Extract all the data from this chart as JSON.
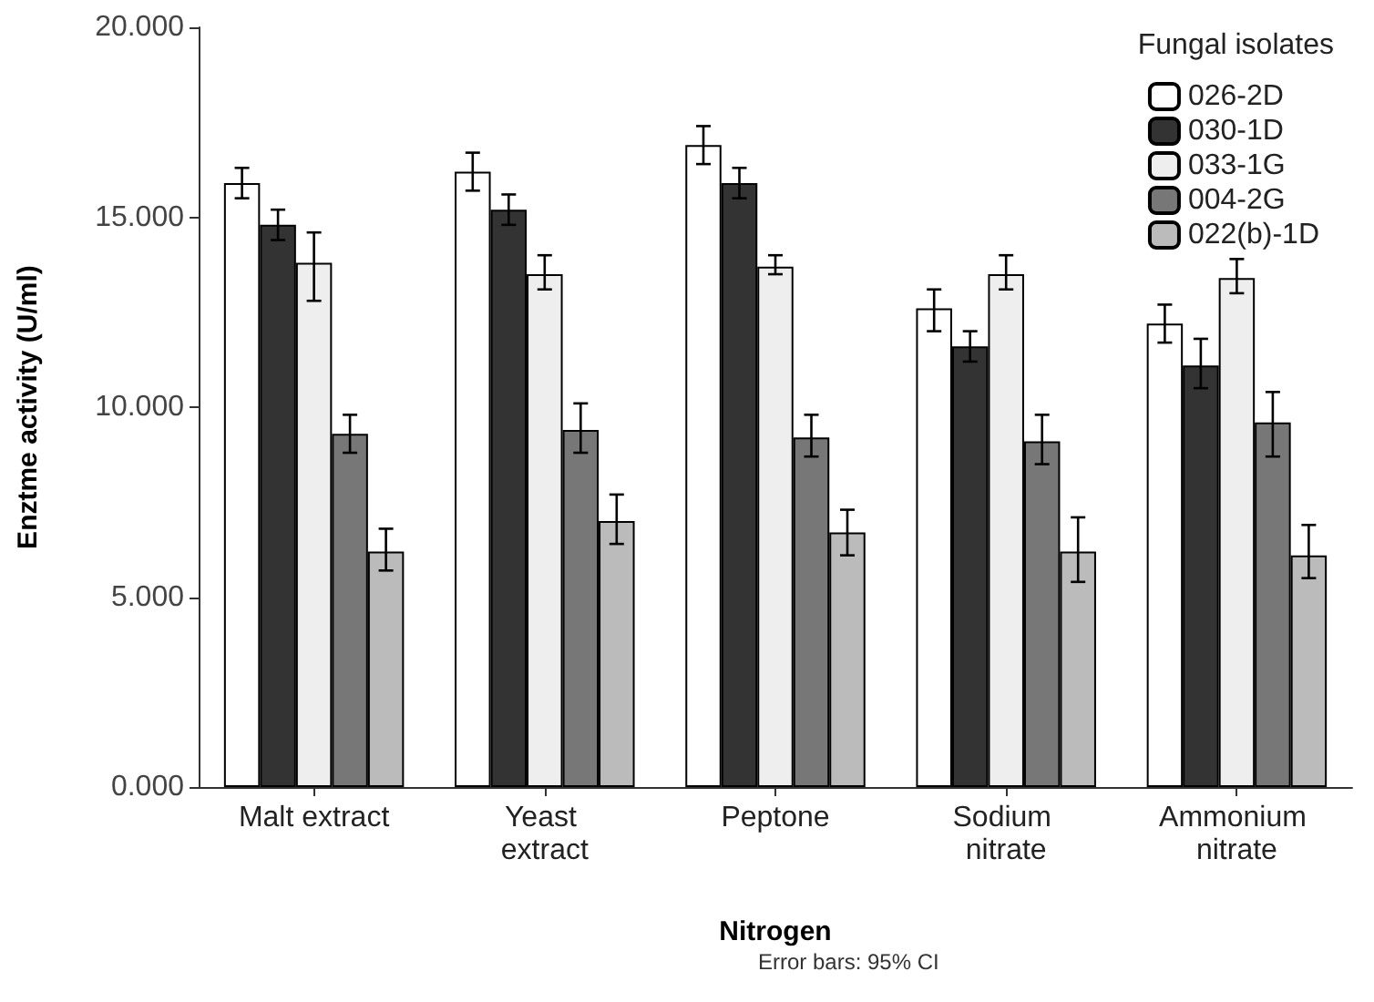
{
  "chart_data": {
    "type": "bar",
    "ylabel": "Enztme activity (U/ml)",
    "xlabel": "Nitrogen",
    "legend_title": "Fungal isolates",
    "annotations": [
      "Error bars: 95% CI"
    ],
    "categories": [
      "Malt extract",
      "Yeast extract",
      "Peptone",
      "Sodium nitrate",
      "Ammonium nitrate"
    ],
    "series": [
      {
        "name": "026-2D",
        "color": "#ffffff",
        "values": [
          15.9,
          16.2,
          16.9,
          12.6,
          12.2
        ],
        "errors": [
          [
            15.5,
            16.3
          ],
          [
            15.7,
            16.7
          ],
          [
            16.4,
            17.4
          ],
          [
            12.0,
            13.1
          ],
          [
            11.7,
            12.7
          ]
        ]
      },
      {
        "name": "030-1D",
        "color": "#333333",
        "values": [
          14.8,
          15.2,
          15.9,
          11.6,
          11.1
        ],
        "errors": [
          [
            14.4,
            15.2
          ],
          [
            14.8,
            15.6
          ],
          [
            15.5,
            16.3
          ],
          [
            11.2,
            12.0
          ],
          [
            10.5,
            11.8
          ]
        ]
      },
      {
        "name": "033-1G",
        "color": "#eeeeee",
        "values": [
          13.8,
          13.5,
          13.7,
          13.5,
          13.4
        ],
        "errors": [
          [
            12.8,
            14.6
          ],
          [
            13.1,
            14.0
          ],
          [
            13.5,
            14.0
          ],
          [
            13.1,
            14.0
          ],
          [
            13.0,
            13.9
          ]
        ]
      },
      {
        "name": "004-2G",
        "color": "#777777",
        "values": [
          9.3,
          9.4,
          9.2,
          9.1,
          9.6
        ],
        "errors": [
          [
            8.8,
            9.8
          ],
          [
            8.8,
            10.1
          ],
          [
            8.7,
            9.8
          ],
          [
            8.5,
            9.8
          ],
          [
            8.7,
            10.4
          ]
        ]
      },
      {
        "name": "022(b)-1D",
        "color": "#bbbbbb",
        "values": [
          6.2,
          7.0,
          6.7,
          6.2,
          6.1
        ],
        "errors": [
          [
            5.7,
            6.8
          ],
          [
            6.4,
            7.7
          ],
          [
            6.1,
            7.3
          ],
          [
            5.4,
            7.1
          ],
          [
            5.5,
            6.9
          ]
        ]
      }
    ],
    "ylim": [
      0,
      20
    ],
    "yticks": [
      {
        "value": 0,
        "label": "0.000"
      },
      {
        "value": 5,
        "label": "5.000"
      },
      {
        "value": 10,
        "label": "10.000"
      },
      {
        "value": 15,
        "label": "15.000"
      },
      {
        "value": 20,
        "label": "20.000"
      }
    ],
    "grid": false,
    "legend": "top right"
  }
}
